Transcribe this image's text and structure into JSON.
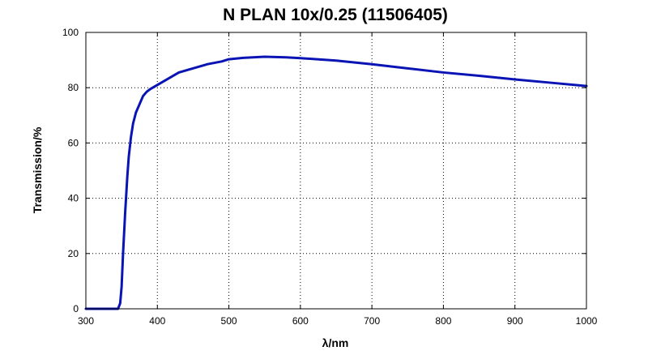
{
  "chart_data": {
    "type": "line",
    "title": "N PLAN 10x/0.25 (11506405)",
    "xlabel": "λ/nm",
    "ylabel": "Transmission/%",
    "xlim": [
      300,
      1000
    ],
    "ylim": [
      0,
      100
    ],
    "xticks": [
      300,
      400,
      500,
      600,
      700,
      800,
      900,
      1000
    ],
    "yticks": [
      0,
      20,
      40,
      60,
      80,
      100
    ],
    "grid": true,
    "colors": {
      "line": "#0a14b4",
      "axes": "#000000",
      "background": "#ffffff"
    },
    "series": [
      {
        "x": [
          300,
          345,
          348,
          350,
          352,
          355,
          358,
          360,
          363,
          366,
          370,
          375,
          380,
          385,
          390,
          400,
          410,
          420,
          430,
          450,
          470,
          490,
          500,
          520,
          550,
          580,
          600,
          650,
          700,
          750,
          800,
          850,
          900,
          950,
          1000
        ],
        "values": [
          0,
          0,
          2,
          8,
          20,
          35,
          48,
          55,
          62,
          67,
          71,
          74,
          77,
          78.5,
          79.5,
          81,
          82.5,
          84,
          85.5,
          87,
          88.5,
          89.5,
          90.3,
          90.8,
          91.2,
          91,
          90.7,
          89.8,
          88.5,
          87,
          85.5,
          84.3,
          83,
          81.8,
          80.6
        ]
      }
    ]
  }
}
